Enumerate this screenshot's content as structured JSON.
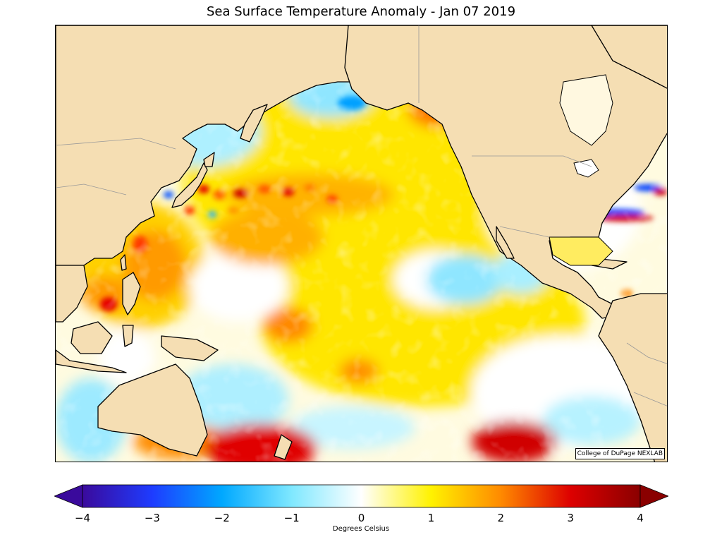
{
  "title": "Sea Surface Temperature Anomaly - Jan 07 2019",
  "credit": "College of DuPage NEXLAB",
  "colorbar": {
    "label": "Degrees Celsius",
    "ticks": [
      "−4",
      "−3",
      "−2",
      "−1",
      "0",
      "1",
      "2",
      "3",
      "4"
    ],
    "min": -4,
    "max": 4,
    "colors": {
      "neg4": "#3a0a9c",
      "neg3": "#1e3cff",
      "neg2": "#00a8ff",
      "neg1": "#7fe8ff",
      "zero": "#ffffff",
      "pos1": "#fff200",
      "pos2": "#ff8a00",
      "pos3": "#dd0000",
      "pos4": "#8a0000"
    }
  },
  "map_colors": {
    "land": "#f5deb3",
    "coast": "#000000",
    "border": "#999999"
  }
}
